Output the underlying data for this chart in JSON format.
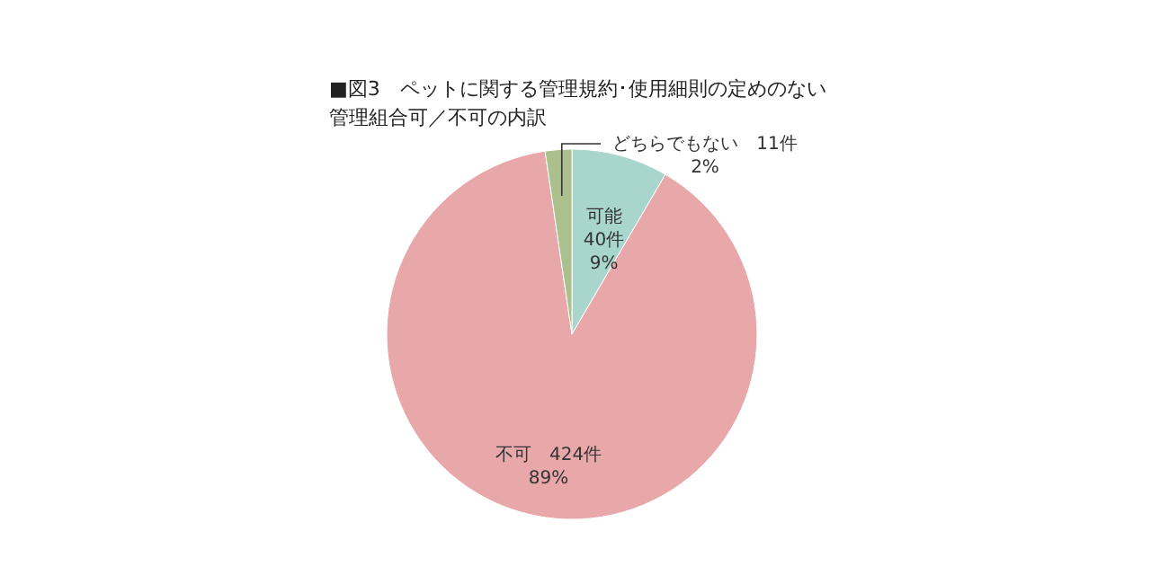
{
  "chart_data": {
    "type": "pie",
    "title": "■図3　ペットに関する管理規約･使用細則の定めのない管理組合可／不可の内訳",
    "categories": [
      "可能",
      "不可",
      "どちらでもない"
    ],
    "values": [
      40,
      424,
      11
    ],
    "colors": [
      "#a8d6cd",
      "#e8a7a9",
      "#acc08e"
    ],
    "value_labels": [
      "40件\n9%",
      "424件\n89%",
      "11件\n2%"
    ]
  }
}
